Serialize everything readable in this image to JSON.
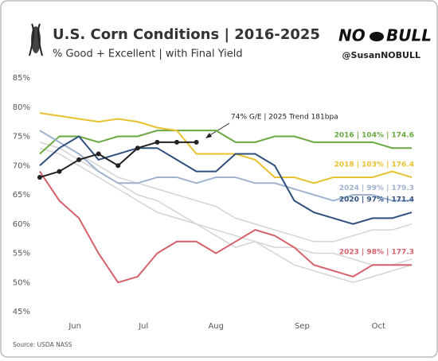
{
  "chart_data": {
    "type": "line",
    "title": "U.S. Corn Conditions | 2016-2025",
    "subtitle": "% Good + Excellent | with Final Yield",
    "brand": [
      "NO",
      "BULL"
    ],
    "handle": "@SusanNOBULL",
    "source": "Source: USDA NASS",
    "annotation": "74% G/E | 2025 Trend 181bpa",
    "x": [
      0,
      1,
      2,
      3,
      4,
      5,
      6,
      7,
      8,
      9,
      10,
      11,
      12,
      13,
      14,
      15,
      16,
      17,
      18,
      19
    ],
    "xlim": [
      -0.2,
      19.2
    ],
    "xticks": [
      {
        "value": 1.8,
        "label": "Jun"
      },
      {
        "value": 5.3,
        "label": "Jul"
      },
      {
        "value": 9,
        "label": "Aug"
      },
      {
        "value": 13.4,
        "label": "Sep"
      },
      {
        "value": 17.3,
        "label": "Oct"
      }
    ],
    "ylim": [
      45,
      85
    ],
    "yticks": [
      {
        "value": 45,
        "label": "45%"
      },
      {
        "value": 50,
        "label": "50%"
      },
      {
        "value": 55,
        "label": "55%"
      },
      {
        "value": 60,
        "label": "60%"
      },
      {
        "value": 65,
        "label": "65%"
      },
      {
        "value": 70,
        "label": "70%"
      },
      {
        "value": 75,
        "label": "75%"
      },
      {
        "value": 80,
        "label": "80%"
      },
      {
        "value": 85,
        "label": "85%"
      }
    ],
    "grid": false,
    "series": [
      {
        "color": "#d4d4d4",
        "values": [
          74,
          73,
          71,
          69,
          67,
          65,
          64,
          62,
          60,
          58,
          56,
          57,
          55,
          53,
          52,
          51,
          50,
          51,
          52,
          53
        ]
      },
      {
        "color": "#d4d4d4",
        "values": [
          76,
          74,
          72,
          70,
          68,
          67,
          66,
          65,
          64,
          63,
          61,
          60,
          59,
          58,
          57,
          57,
          58,
          59,
          59,
          60
        ]
      },
      {
        "color": "#d4d4d4",
        "values": [
          73,
          72,
          70,
          68,
          66,
          64,
          62,
          61,
          60,
          59,
          58,
          57,
          56,
          56,
          55,
          55,
          54,
          53,
          53,
          54
        ]
      },
      {
        "name": "2016 | 104% | 174.6",
        "color": "#6aa842",
        "values": [
          72,
          75,
          75,
          74,
          75,
          75,
          76,
          76,
          76,
          76,
          74,
          74,
          75,
          75,
          74,
          74,
          74,
          74,
          73,
          73
        ]
      },
      {
        "name": "2018 | 103% | 176.4",
        "color": "#e8c22e",
        "values": [
          79,
          78.5,
          78,
          77.5,
          78,
          77.5,
          76.5,
          76,
          72,
          72,
          72,
          71,
          68,
          68,
          67,
          68,
          68,
          68,
          69,
          68
        ]
      },
      {
        "name": "2024 | 99% | 179.3",
        "color": "#9fb3cf",
        "values": [
          76,
          74,
          72,
          69,
          67,
          67,
          68,
          68,
          67,
          68,
          68,
          67,
          67,
          66,
          65,
          64,
          65,
          65,
          64,
          64
        ]
      },
      {
        "name": "2020 | 97% | 171.4",
        "color": "#2f4f7f",
        "values": [
          70,
          73,
          75,
          71,
          72,
          73,
          73,
          71,
          69,
          69,
          72,
          72,
          70,
          64,
          62,
          61,
          60,
          61,
          61,
          62
        ]
      },
      {
        "name": "2023 | 98% | 177.3",
        "color": "#d6606a",
        "values": [
          69,
          64,
          61,
          55,
          50,
          51,
          55,
          57,
          57,
          55,
          57,
          59,
          58,
          56,
          53,
          52,
          51,
          53,
          53,
          53
        ]
      },
      {
        "color": "#222222",
        "markers": true,
        "values": [
          68,
          69,
          71,
          72,
          70,
          73,
          74,
          74,
          74,
          null,
          null,
          null,
          null,
          null,
          null,
          null,
          null,
          null,
          null,
          null
        ]
      }
    ]
  }
}
